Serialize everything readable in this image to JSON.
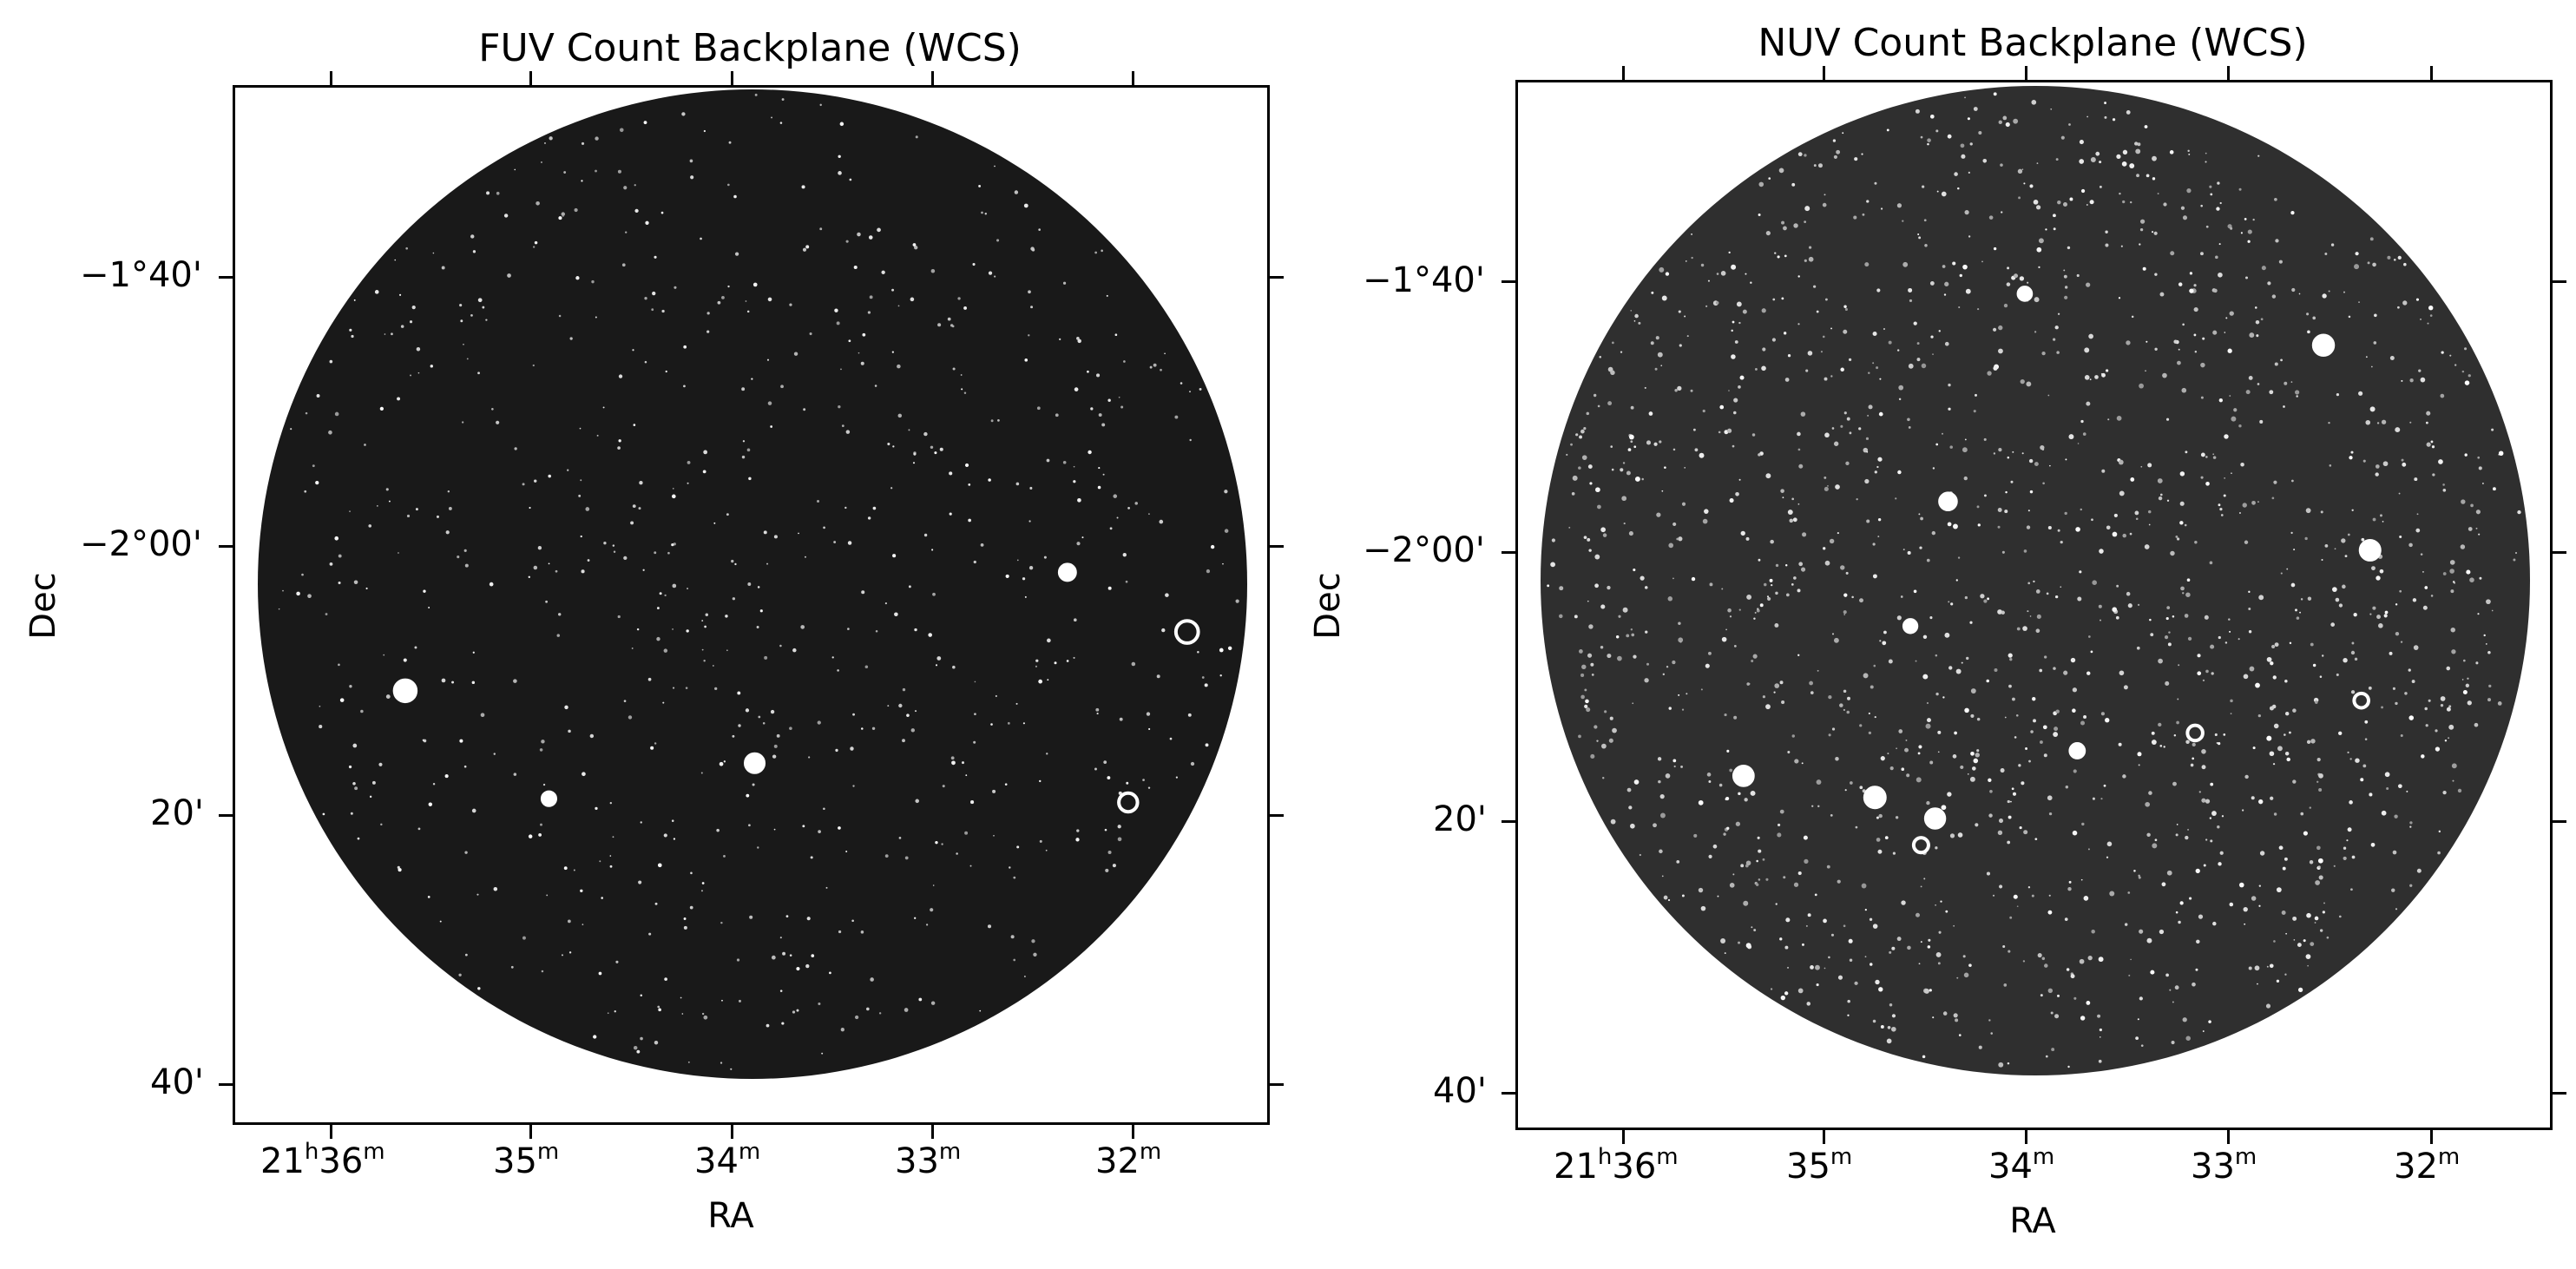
{
  "panels": [
    {
      "title": "FUV Count Backplane (WCS)",
      "xlabel": "RA",
      "ylabel": "Dec",
      "band": "FUV",
      "ra_ticks": [
        {
          "h": "21",
          "m": "36",
          "full": true
        },
        {
          "m": "35"
        },
        {
          "m": "34"
        },
        {
          "m": "33"
        },
        {
          "m": "32"
        }
      ],
      "dec_ticks": [
        "−1°40'",
        "−2°00'",
        "20'",
        "40'"
      ],
      "sky_color": "#191919",
      "bright_sources": 6
    },
    {
      "title": "NUV Count Backplane (WCS)",
      "xlabel": "RA",
      "ylabel": "Dec",
      "band": "NUV",
      "ra_ticks": [
        {
          "h": "21",
          "m": "36",
          "full": true
        },
        {
          "m": "35"
        },
        {
          "m": "34"
        },
        {
          "m": "33"
        },
        {
          "m": "32"
        }
      ],
      "dec_ticks": [
        "−1°40'",
        "−2°00'",
        "20'",
        "40'"
      ],
      "sky_color": "#2f2f2f",
      "bright_sources": 12
    }
  ],
  "units": {
    "hour": "h",
    "minute": "m"
  }
}
